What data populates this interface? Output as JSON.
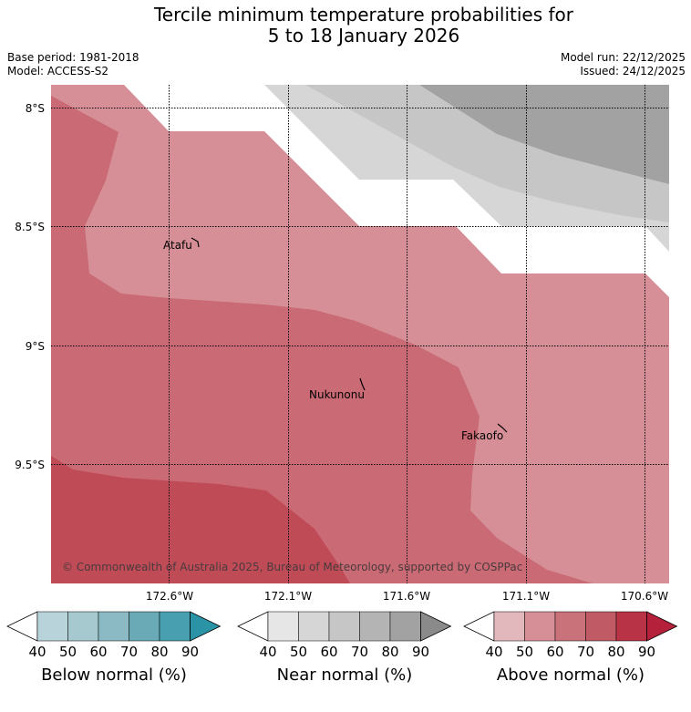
{
  "title_line1": "Tercile minimum temperature probabilities for",
  "title_line2": "5 to 18 January 2026",
  "info": {
    "base_period": "Base period: 1981-2018",
    "model": "Model: ACCESS-S2",
    "model_run": "Model run: 22/12/2025",
    "issued": "Issued: 24/12/2025"
  },
  "lat_labels": [
    "8°S",
    "8.5°S",
    "9°S",
    "9.5°S"
  ],
  "lon_labels": [
    "172.6°W",
    "172.1°W",
    "171.6°W",
    "171.1°W",
    "170.6°W"
  ],
  "places": [
    "Atafu",
    "Nukunonu",
    "Fakaofo"
  ],
  "copyright": "© Commonwealth of Australia 2025, Bureau of Meteorology, supported by COSPPac",
  "legends": [
    {
      "title": "Below normal (%)",
      "ticks": [
        "40",
        "50",
        "60",
        "70",
        "80",
        "90"
      ],
      "colors": [
        "#ffffff",
        "#b9d3da",
        "#a5c9cf",
        "#8bbac4",
        "#69aab6",
        "#479fb0",
        "#2a94a6"
      ]
    },
    {
      "title": "Near normal (%)",
      "ticks": [
        "40",
        "50",
        "60",
        "70",
        "80",
        "90"
      ],
      "colors": [
        "#ffffff",
        "#e6e6e6",
        "#d6d6d6",
        "#c6c6c6",
        "#b4b4b4",
        "#a2a2a2",
        "#8a8a8a"
      ]
    },
    {
      "title": "Above normal (%)",
      "ticks": [
        "40",
        "50",
        "60",
        "70",
        "80",
        "90"
      ],
      "colors": [
        "#ffffff",
        "#e2b8bd",
        "#d68f97",
        "#ca727a",
        "#c05a64",
        "#b83346",
        "#b5203b"
      ]
    }
  ],
  "colors": {
    "above_50": "#d68f97",
    "above_60": "#c96a74",
    "above_70": "#bf4b57",
    "near_50": "#d6d6d6",
    "near_60": "#c6c6c6",
    "near_80": "#a2a2a2"
  }
}
